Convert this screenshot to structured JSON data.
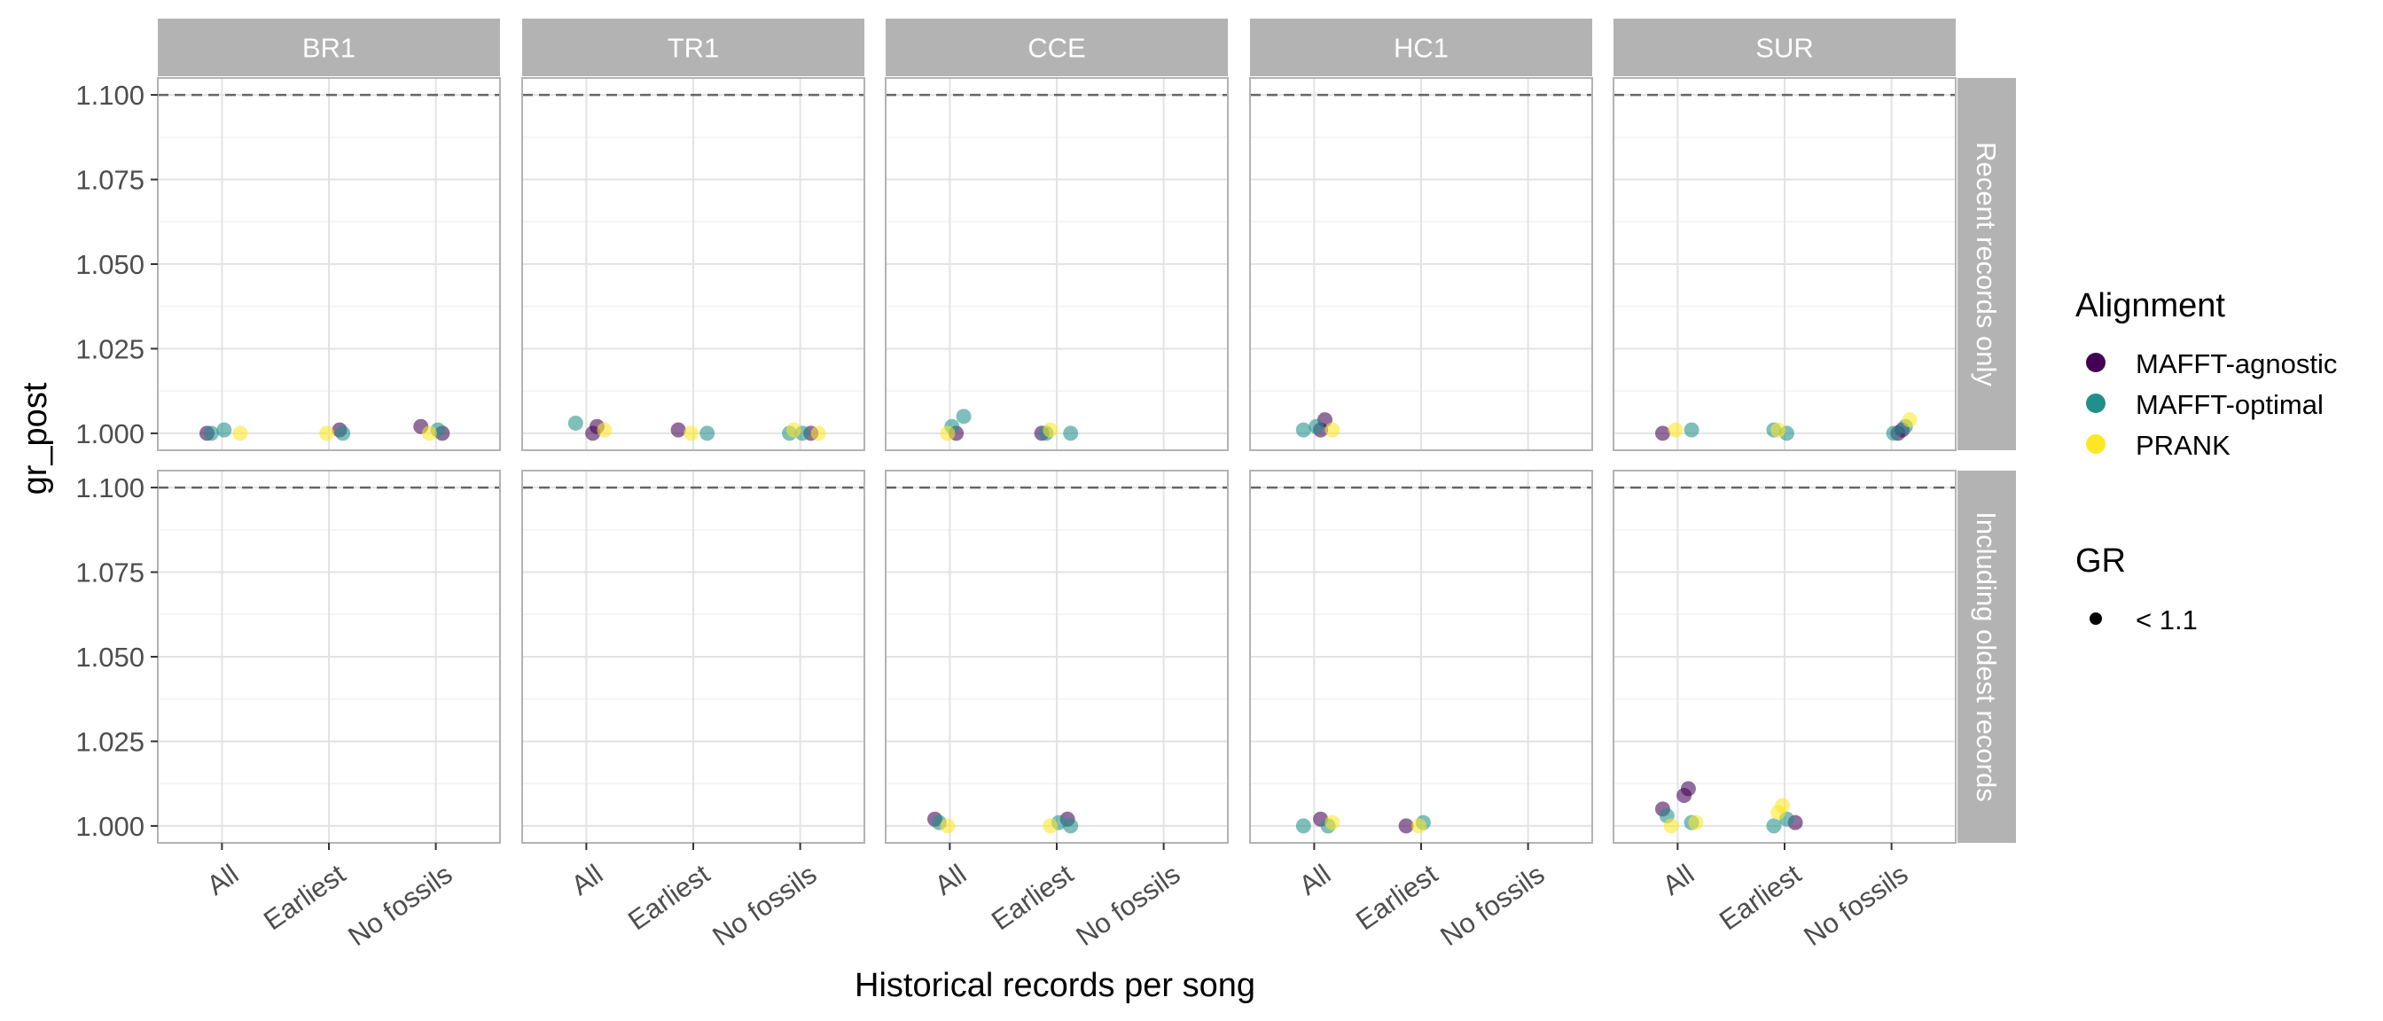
{
  "chart_data": {
    "type": "scatter",
    "xlabel": "Historical records per song",
    "ylabel": "gr_post",
    "categories": [
      "All",
      "Earliest",
      "No fossils"
    ],
    "ylim": [
      0.995,
      1.105
    ],
    "yticks": [
      "1.000",
      "1.025",
      "1.050",
      "1.075",
      "1.100"
    ],
    "reference_line": 1.1,
    "grid": true,
    "col_facets": [
      "BR1",
      "TR1",
      "CCE",
      "HC1",
      "SUR"
    ],
    "row_facets": [
      "Recent records only",
      "Including oldest records"
    ],
    "legend": {
      "position": "right",
      "alignment_title": "Alignment",
      "alignment_items": [
        {
          "label": "MAFFT-agnostic",
          "color": "#440154"
        },
        {
          "label": "MAFFT-optimal",
          "color": "#21908C"
        },
        {
          "label": "PRANK",
          "color": "#FDE725"
        }
      ],
      "gr_title": "GR",
      "gr_items": [
        {
          "label": "< 1.1"
        }
      ]
    },
    "colors": {
      "MAFFT-agnostic": "#440154",
      "MAFFT-optimal": "#21908C",
      "PRANK": "#FDE725"
    },
    "series": [
      {
        "name": "MAFFT-agnostic",
        "points": [
          {
            "row": 0,
            "col": 0,
            "x": 1,
            "y": 1.0
          },
          {
            "row": 0,
            "col": 0,
            "x": 2,
            "y": 1.001
          },
          {
            "row": 0,
            "col": 0,
            "x": 3,
            "y": 1.0
          },
          {
            "row": 0,
            "col": 0,
            "x": 3,
            "y": 1.002
          },
          {
            "row": 0,
            "col": 1,
            "x": 1,
            "y": 1.002
          },
          {
            "row": 0,
            "col": 1,
            "x": 1,
            "y": 1.0
          },
          {
            "row": 0,
            "col": 1,
            "x": 2,
            "y": 1.001
          },
          {
            "row": 0,
            "col": 1,
            "x": 3,
            "y": 1.0
          },
          {
            "row": 0,
            "col": 2,
            "x": 1,
            "y": 1.0
          },
          {
            "row": 0,
            "col": 2,
            "x": 2,
            "y": 1.0
          },
          {
            "row": 0,
            "col": 3,
            "x": 1,
            "y": 1.004
          },
          {
            "row": 0,
            "col": 3,
            "x": 1,
            "y": 1.001
          },
          {
            "row": 0,
            "col": 4,
            "x": 1,
            "y": 1.0
          },
          {
            "row": 0,
            "col": 4,
            "x": 3,
            "y": 1.001
          },
          {
            "row": 0,
            "col": 4,
            "x": 3,
            "y": 1.0
          },
          {
            "row": 1,
            "col": 2,
            "x": 1,
            "y": 1.002
          },
          {
            "row": 1,
            "col": 2,
            "x": 2,
            "y": 1.002
          },
          {
            "row": 1,
            "col": 3,
            "x": 1,
            "y": 1.002
          },
          {
            "row": 1,
            "col": 3,
            "x": 2,
            "y": 1.0
          },
          {
            "row": 1,
            "col": 4,
            "x": 1,
            "y": 1.011
          },
          {
            "row": 1,
            "col": 4,
            "x": 1,
            "y": 1.009
          },
          {
            "row": 1,
            "col": 4,
            "x": 1,
            "y": 1.005
          },
          {
            "row": 1,
            "col": 4,
            "x": 2,
            "y": 1.001
          }
        ]
      },
      {
        "name": "MAFFT-optimal",
        "points": [
          {
            "row": 0,
            "col": 0,
            "x": 1,
            "y": 1.001
          },
          {
            "row": 0,
            "col": 0,
            "x": 1,
            "y": 1.0
          },
          {
            "row": 0,
            "col": 0,
            "x": 2,
            "y": 1.0
          },
          {
            "row": 0,
            "col": 0,
            "x": 3,
            "y": 1.001
          },
          {
            "row": 0,
            "col": 1,
            "x": 1,
            "y": 1.003
          },
          {
            "row": 0,
            "col": 1,
            "x": 2,
            "y": 1.0
          },
          {
            "row": 0,
            "col": 1,
            "x": 3,
            "y": 1.0
          },
          {
            "row": 0,
            "col": 1,
            "x": 3,
            "y": 1.0
          },
          {
            "row": 0,
            "col": 2,
            "x": 1,
            "y": 1.005
          },
          {
            "row": 0,
            "col": 2,
            "x": 1,
            "y": 1.002
          },
          {
            "row": 0,
            "col": 2,
            "x": 2,
            "y": 1.0
          },
          {
            "row": 0,
            "col": 2,
            "x": 2,
            "y": 1.0
          },
          {
            "row": 0,
            "col": 3,
            "x": 1,
            "y": 1.002
          },
          {
            "row": 0,
            "col": 3,
            "x": 1,
            "y": 1.001
          },
          {
            "row": 0,
            "col": 4,
            "x": 1,
            "y": 1.001
          },
          {
            "row": 0,
            "col": 4,
            "x": 2,
            "y": 1.0
          },
          {
            "row": 0,
            "col": 4,
            "x": 2,
            "y": 1.001
          },
          {
            "row": 0,
            "col": 4,
            "x": 3,
            "y": 1.002
          },
          {
            "row": 0,
            "col": 4,
            "x": 3,
            "y": 1.0
          },
          {
            "row": 1,
            "col": 2,
            "x": 1,
            "y": 1.001
          },
          {
            "row": 1,
            "col": 2,
            "x": 2,
            "y": 1.0
          },
          {
            "row": 1,
            "col": 2,
            "x": 2,
            "y": 1.001
          },
          {
            "row": 1,
            "col": 3,
            "x": 1,
            "y": 1.0
          },
          {
            "row": 1,
            "col": 3,
            "x": 1,
            "y": 1.0
          },
          {
            "row": 1,
            "col": 3,
            "x": 2,
            "y": 1.001
          },
          {
            "row": 1,
            "col": 4,
            "x": 1,
            "y": 1.003
          },
          {
            "row": 1,
            "col": 4,
            "x": 1,
            "y": 1.001
          },
          {
            "row": 1,
            "col": 4,
            "x": 2,
            "y": 1.002
          },
          {
            "row": 1,
            "col": 4,
            "x": 2,
            "y": 1.0
          }
        ]
      },
      {
        "name": "PRANK",
        "points": [
          {
            "row": 0,
            "col": 0,
            "x": 1,
            "y": 1.0
          },
          {
            "row": 0,
            "col": 0,
            "x": 2,
            "y": 1.0
          },
          {
            "row": 0,
            "col": 0,
            "x": 3,
            "y": 1.0
          },
          {
            "row": 0,
            "col": 1,
            "x": 1,
            "y": 1.001
          },
          {
            "row": 0,
            "col": 1,
            "x": 2,
            "y": 1.0
          },
          {
            "row": 0,
            "col": 1,
            "x": 3,
            "y": 1.001
          },
          {
            "row": 0,
            "col": 1,
            "x": 3,
            "y": 1.0
          },
          {
            "row": 0,
            "col": 2,
            "x": 1,
            "y": 1.0
          },
          {
            "row": 0,
            "col": 2,
            "x": 2,
            "y": 1.001
          },
          {
            "row": 0,
            "col": 3,
            "x": 1,
            "y": 1.001
          },
          {
            "row": 0,
            "col": 4,
            "x": 1,
            "y": 1.001
          },
          {
            "row": 0,
            "col": 4,
            "x": 2,
            "y": 1.001
          },
          {
            "row": 0,
            "col": 4,
            "x": 3,
            "y": 1.004
          },
          {
            "row": 1,
            "col": 2,
            "x": 1,
            "y": 1.0
          },
          {
            "row": 1,
            "col": 2,
            "x": 2,
            "y": 1.0
          },
          {
            "row": 1,
            "col": 3,
            "x": 1,
            "y": 1.001
          },
          {
            "row": 1,
            "col": 3,
            "x": 2,
            "y": 1.0
          },
          {
            "row": 1,
            "col": 4,
            "x": 1,
            "y": 1.0
          },
          {
            "row": 1,
            "col": 4,
            "x": 1,
            "y": 1.001
          },
          {
            "row": 1,
            "col": 4,
            "x": 2,
            "y": 1.006
          },
          {
            "row": 1,
            "col": 4,
            "x": 2,
            "y": 1.004
          }
        ]
      }
    ]
  }
}
